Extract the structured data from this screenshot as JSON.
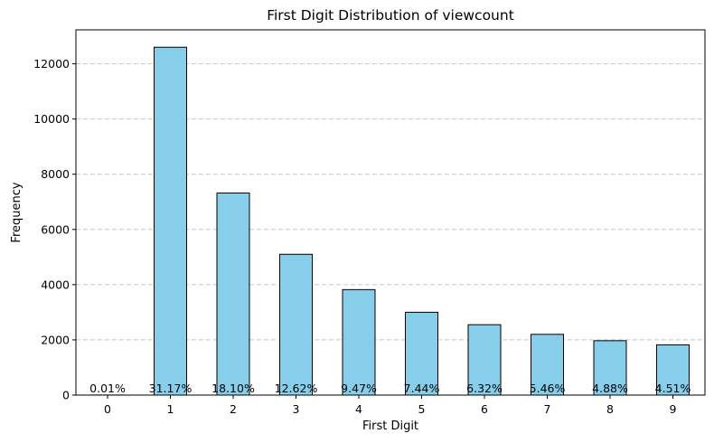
{
  "chart_data": {
    "type": "bar",
    "title": "First Digit Distribution of viewcount",
    "xlabel": "First Digit",
    "ylabel": "Frequency",
    "categories": [
      "0",
      "1",
      "2",
      "3",
      "4",
      "5",
      "6",
      "7",
      "8",
      "9"
    ],
    "values": [
      3,
      12600,
      7320,
      5100,
      3820,
      3000,
      2550,
      2200,
      1970,
      1820
    ],
    "data_labels": [
      "0.01%",
      "31.17%",
      "18.10%",
      "12.62%",
      "9.47%",
      "7.44%",
      "6.32%",
      "5.46%",
      "4.88%",
      "4.51%"
    ],
    "ylim": [
      0,
      13230
    ],
    "yticks": [
      0,
      2000,
      4000,
      6000,
      8000,
      10000,
      12000
    ],
    "ytick_labels": [
      "0",
      "2000",
      "4000",
      "6000",
      "8000",
      "10000",
      "12000"
    ],
    "grid": "y-dashed",
    "colors": {
      "bar_fill": "#87ceeb",
      "bar_edge": "#000000",
      "grid": "#c8c8c8"
    }
  }
}
